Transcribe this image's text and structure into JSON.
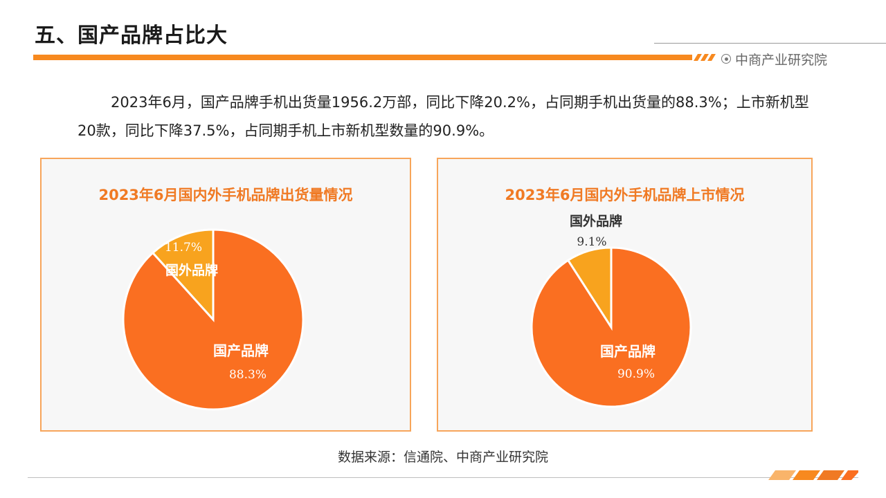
{
  "header": {
    "title": "五、国产品牌占比大",
    "brand": "中商产业研究院"
  },
  "summary": {
    "text": "2023年6月，国产品牌手机出货量1956.2万部，同比下降20.2%，占同期手机出货量的88.3%；上市新机型20款，同比下降37.5%，占同期手机上市新机型数量的90.9%。"
  },
  "colors": {
    "domestic": "#fa6f21",
    "foreign": "#f8a31e",
    "accent": "#f7891f"
  },
  "chart_data": [
    {
      "type": "pie",
      "title": "2023年6月国内外手机品牌出货量情况",
      "series": [
        {
          "name": "国产品牌",
          "value": 88.3,
          "label": "88.3%"
        },
        {
          "name": "国外品牌",
          "value": 11.7,
          "label": "11.7%"
        }
      ]
    },
    {
      "type": "pie",
      "title": "2023年6月国内外手机品牌上市情况",
      "series": [
        {
          "name": "国产品牌",
          "value": 90.9,
          "label": "90.9%"
        },
        {
          "name": "国外品牌",
          "value": 9.1,
          "label": "9.1%"
        }
      ]
    }
  ],
  "footer": {
    "source": "数据来源：信通院、中商产业研究院"
  }
}
